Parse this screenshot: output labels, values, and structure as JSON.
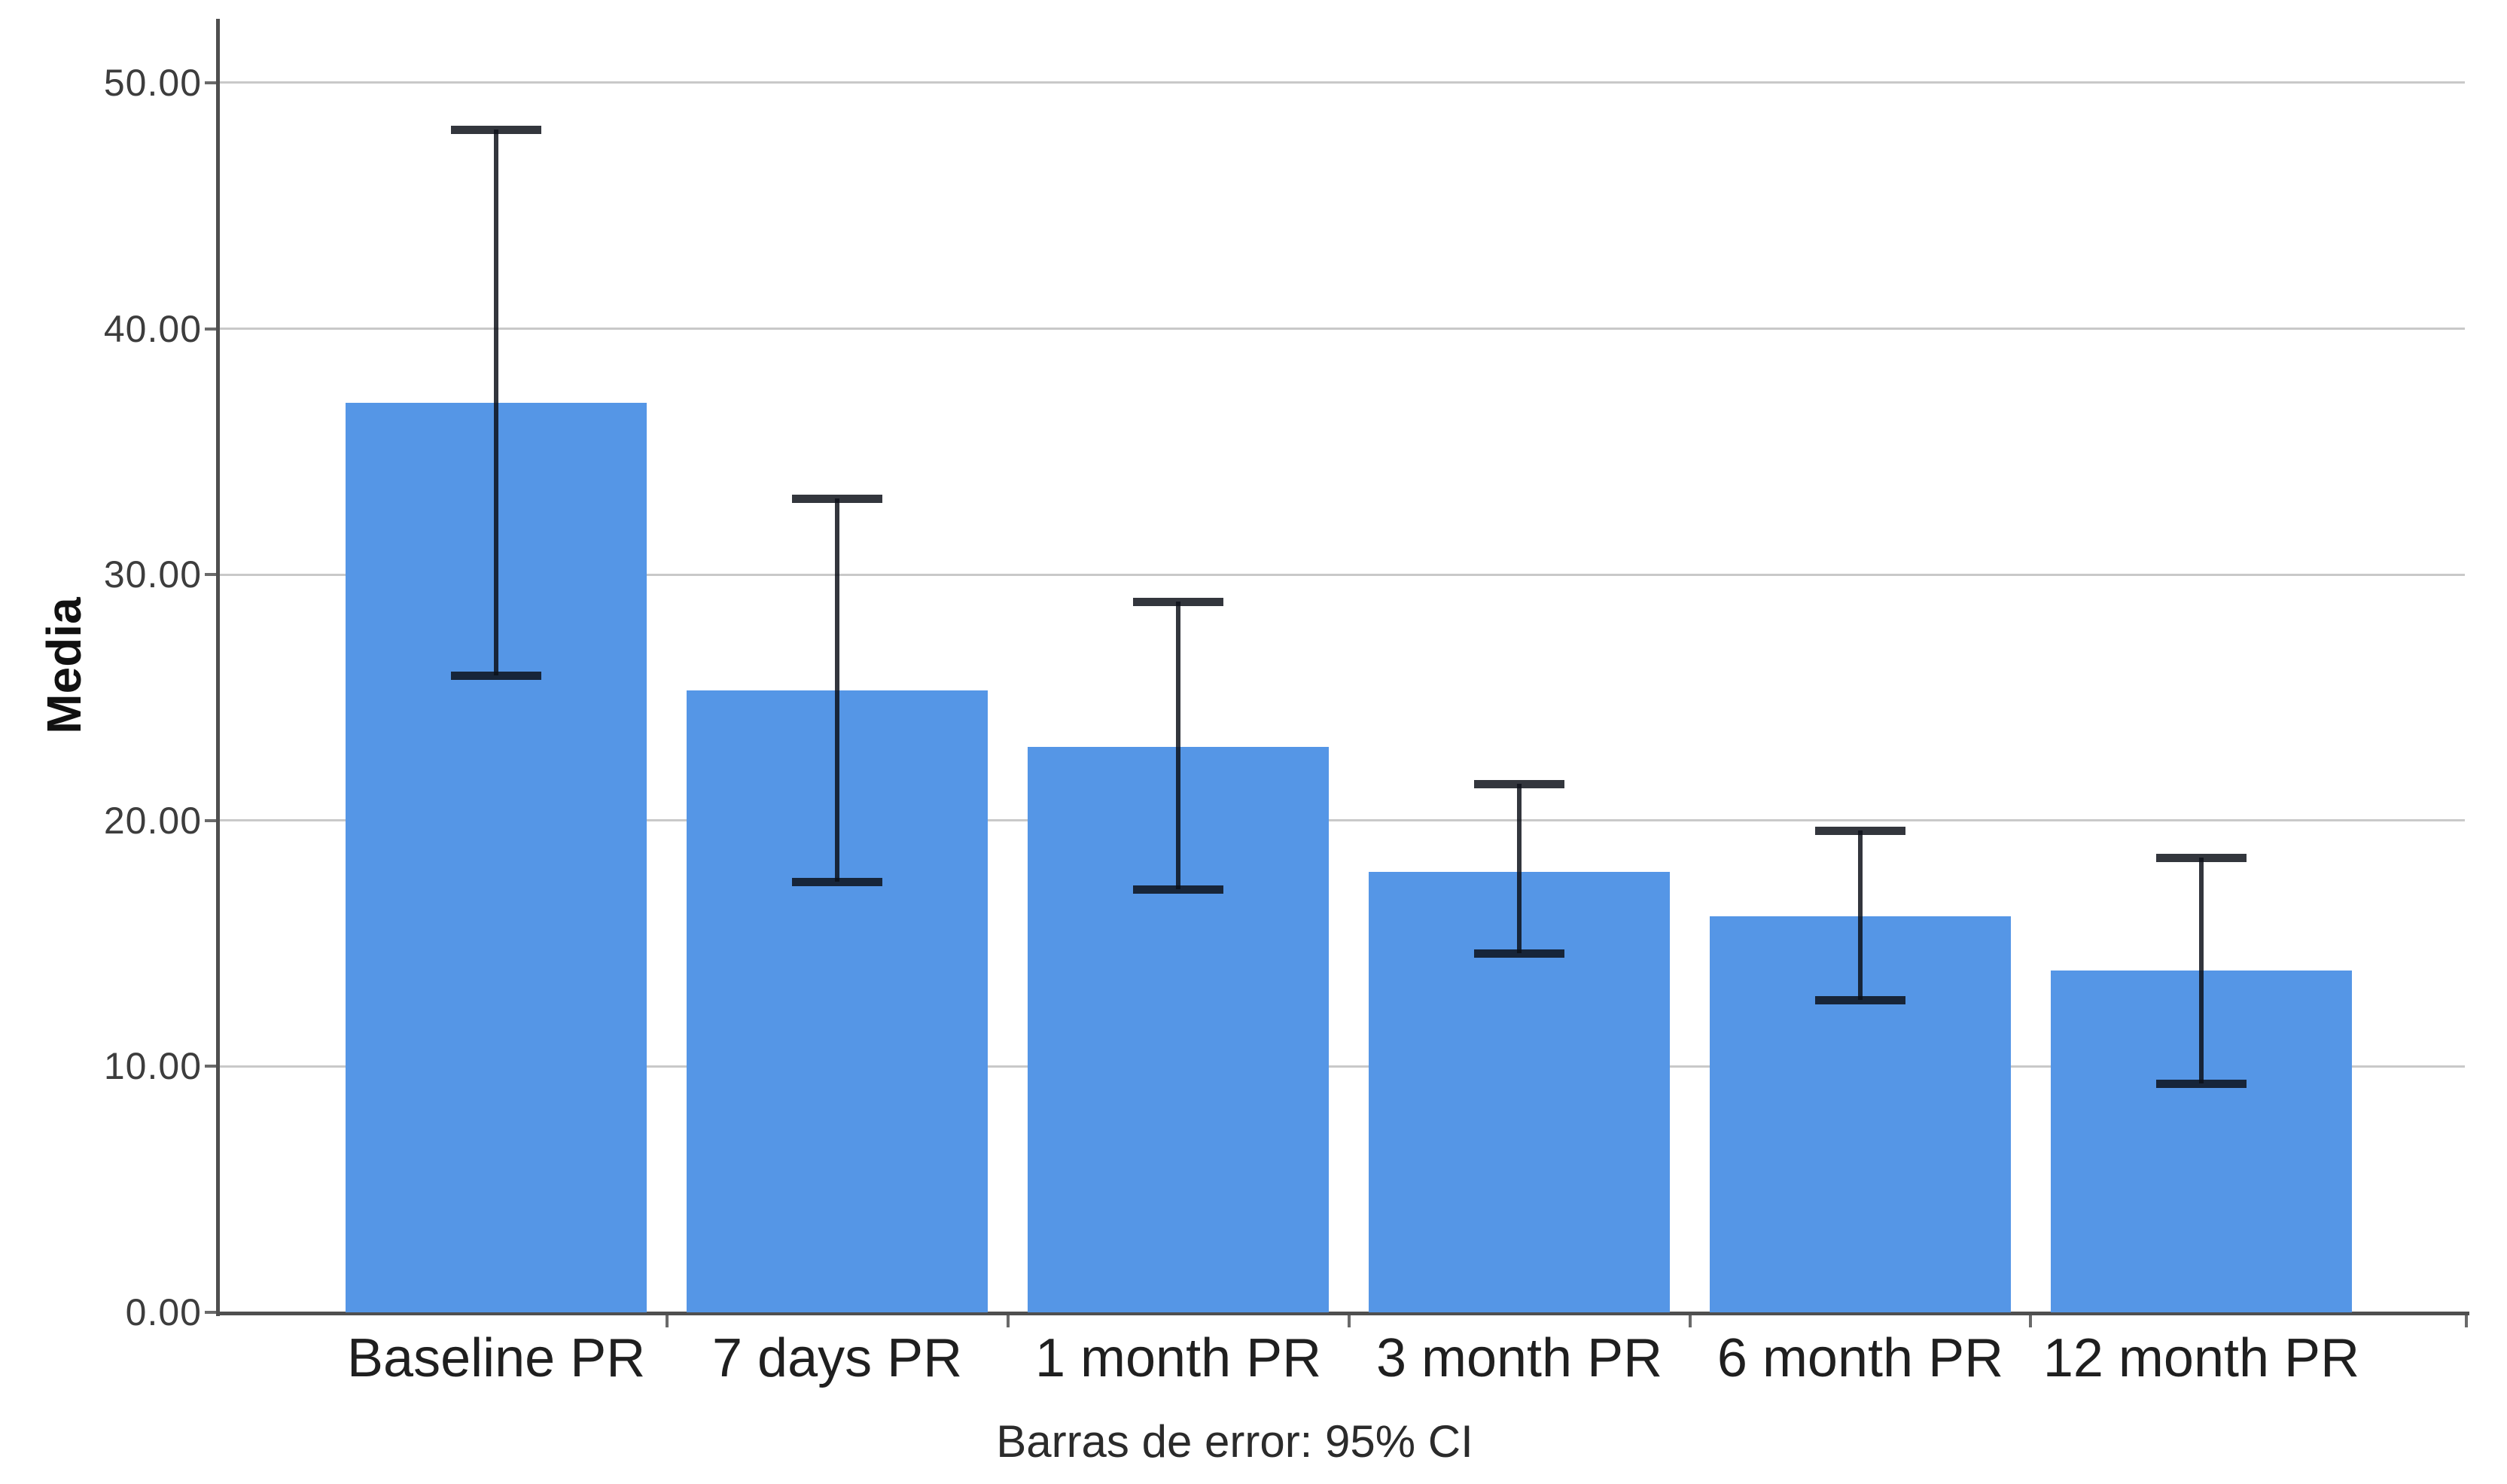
{
  "chart_data": {
    "type": "bar",
    "title": "",
    "ylabel": "Media",
    "xlabel": "",
    "caption": "Barras de error: 95% CI",
    "categories": [
      "Baseline PR",
      "7 days PR",
      "1 month PR",
      "3 month PR",
      "6 month PR",
      "12 month PR"
    ],
    "series": [
      {
        "name": "Media",
        "values": [
          37.0,
          25.3,
          23.0,
          17.9,
          16.1,
          13.9
        ],
        "ci_low": [
          25.9,
          17.5,
          17.2,
          14.6,
          12.7,
          9.3
        ],
        "ci_high": [
          48.1,
          33.1,
          28.9,
          21.5,
          19.6,
          18.5
        ]
      }
    ],
    "error_bars": "95% CI",
    "ylim": [
      0,
      52.6
    ],
    "yticks": [
      0,
      10,
      20,
      30,
      40,
      50
    ],
    "ytick_labels": [
      "0.00",
      "10.00",
      "20.00",
      "30.00",
      "40.00",
      "50.00"
    ],
    "grid": "horizontal",
    "legend": "none",
    "bar_color": "#5596e6",
    "error_bar_color": "rgba(12,16,24,0.84)",
    "axis_color": "#4f4f4f",
    "gridline_color": "#c9c9c9"
  }
}
